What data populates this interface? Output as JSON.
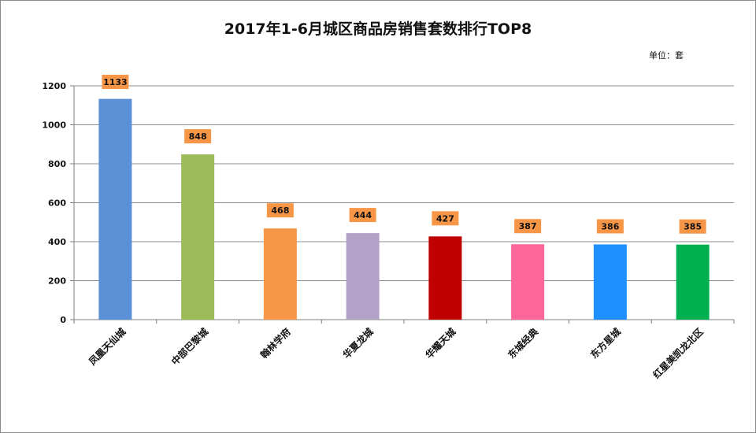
{
  "title": "2017年1-6月城区商品房销售套数排行TOP8",
  "unit_label": "单位：套",
  "chart_data": {
    "type": "bar",
    "title": "2017年1-6月城区商品房销售套数排行TOP8",
    "xlabel": "",
    "ylabel": "",
    "unit": "单位：套",
    "ylim": [
      0,
      1200
    ],
    "yticks": [
      0,
      200,
      400,
      600,
      800,
      1000,
      1200
    ],
    "grid": true,
    "legend": "none",
    "categories": [
      "凤凰天仙城",
      "中部巴黎城",
      "翰林学府",
      "华夏龙城",
      "华耀天城",
      "东城经典",
      "东方星城",
      "红星美凯龙北区"
    ],
    "values": [
      1133,
      848,
      468,
      444,
      427,
      387,
      386,
      385
    ],
    "bar_colors": [
      "#5b8fd6",
      "#9bbb59",
      "#f79646",
      "#b3a2c7",
      "#c00000",
      "#ff6699",
      "#1e90ff",
      "#00b050"
    ],
    "label_box_color": "#f79646"
  }
}
